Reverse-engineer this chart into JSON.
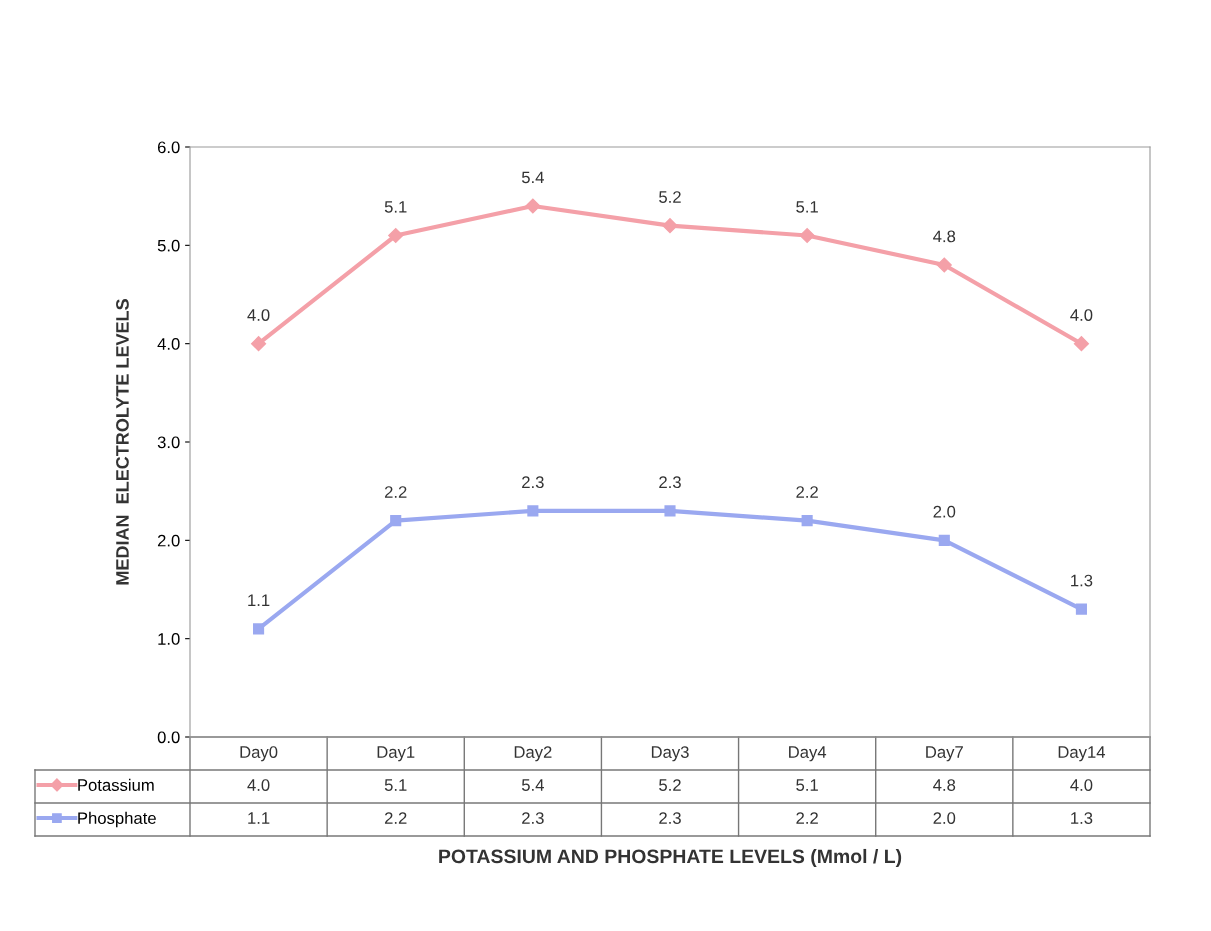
{
  "chart_data": {
    "type": "line",
    "xlabel": "POTASSIUM AND PHOSPHATE LEVELS (Mmol / L)",
    "ylabel": "MEDIAN  ELECTROLYTE LEVELS",
    "categories": [
      "Day0",
      "Day1",
      "Day2",
      "Day3",
      "Day4",
      "Day7",
      "Day14"
    ],
    "series": [
      {
        "name": "Potassium",
        "color": "#f4a0a8",
        "marker": "diamond",
        "values": [
          4.0,
          5.1,
          5.4,
          5.2,
          5.1,
          4.8,
          4.0
        ],
        "value_labels": [
          "4.0",
          "5.1",
          "5.4",
          "5.2",
          "5.1",
          "4.8",
          "4.0"
        ]
      },
      {
        "name": "Phosphate",
        "color": "#9aa8f0",
        "marker": "square",
        "values": [
          1.1,
          2.2,
          2.3,
          2.3,
          2.2,
          2.0,
          1.3
        ],
        "value_labels": [
          "1.1",
          "2.2",
          "2.3",
          "2.3",
          "2.2",
          "2.0",
          "1.3"
        ]
      }
    ],
    "ylim": [
      0,
      6
    ],
    "yticks": [
      {
        "value": 0,
        "label": "0.0"
      },
      {
        "value": 1,
        "label": "1.0"
      },
      {
        "value": 2,
        "label": "2.0"
      },
      {
        "value": 3,
        "label": "3.0"
      },
      {
        "value": 4,
        "label": "4.0"
      },
      {
        "value": 5,
        "label": "5.0"
      },
      {
        "value": 6,
        "label": "6.0"
      }
    ],
    "legend": "bottom left",
    "grid": false,
    "line_style": "solid"
  }
}
